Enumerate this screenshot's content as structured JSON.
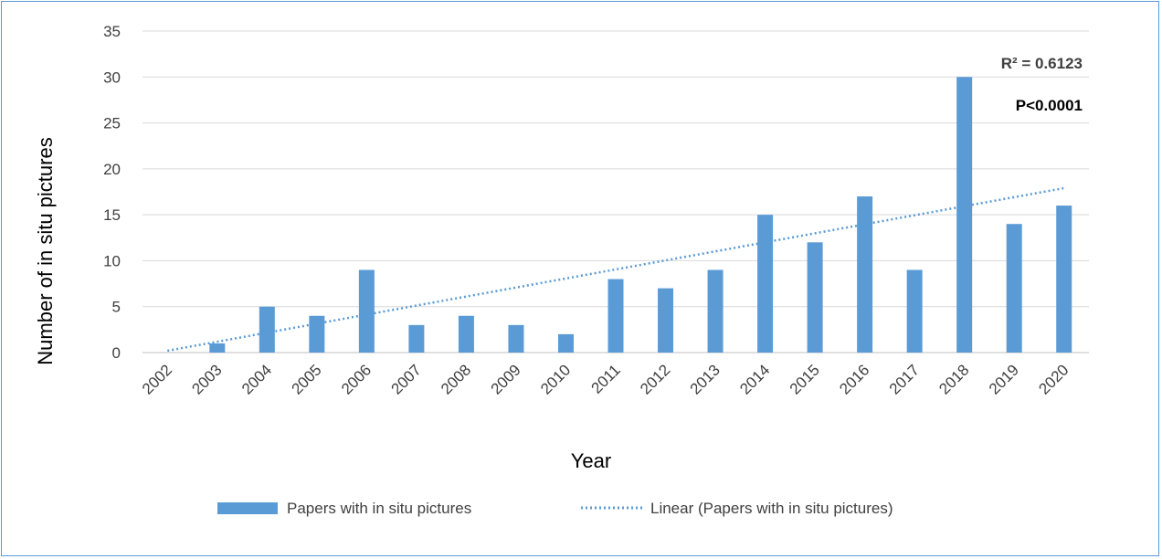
{
  "chart_data": {
    "type": "bar",
    "categories": [
      "2002",
      "2003",
      "2004",
      "2005",
      "2006",
      "2007",
      "2008",
      "2009",
      "2010",
      "2011",
      "2012",
      "2013",
      "2014",
      "2015",
      "2016",
      "2017",
      "2018",
      "2019",
      "2020"
    ],
    "series": [
      {
        "name": "Papers with in situ pictures",
        "values": [
          0,
          1,
          5,
          4,
          9,
          3,
          4,
          3,
          2,
          8,
          7,
          9,
          15,
          12,
          17,
          9,
          30,
          14,
          16
        ],
        "color": "#5b9bd5"
      }
    ],
    "trendline": {
      "name": "Linear (Papers with in situ pictures)",
      "style": "dotted",
      "color": "#5b9bd5",
      "start_value": 0.2,
      "end_value": 17.9
    },
    "annotations": {
      "r2": "R² = 0.6123",
      "p": "P<0.0001"
    },
    "xlabel": "Year",
    "ylabel": "Number of in situ pictures",
    "ylim": [
      0,
      35
    ],
    "yticks": [
      0,
      5,
      10,
      15,
      20,
      25,
      30,
      35
    ],
    "grid": true,
    "legend_position": "bottom"
  }
}
